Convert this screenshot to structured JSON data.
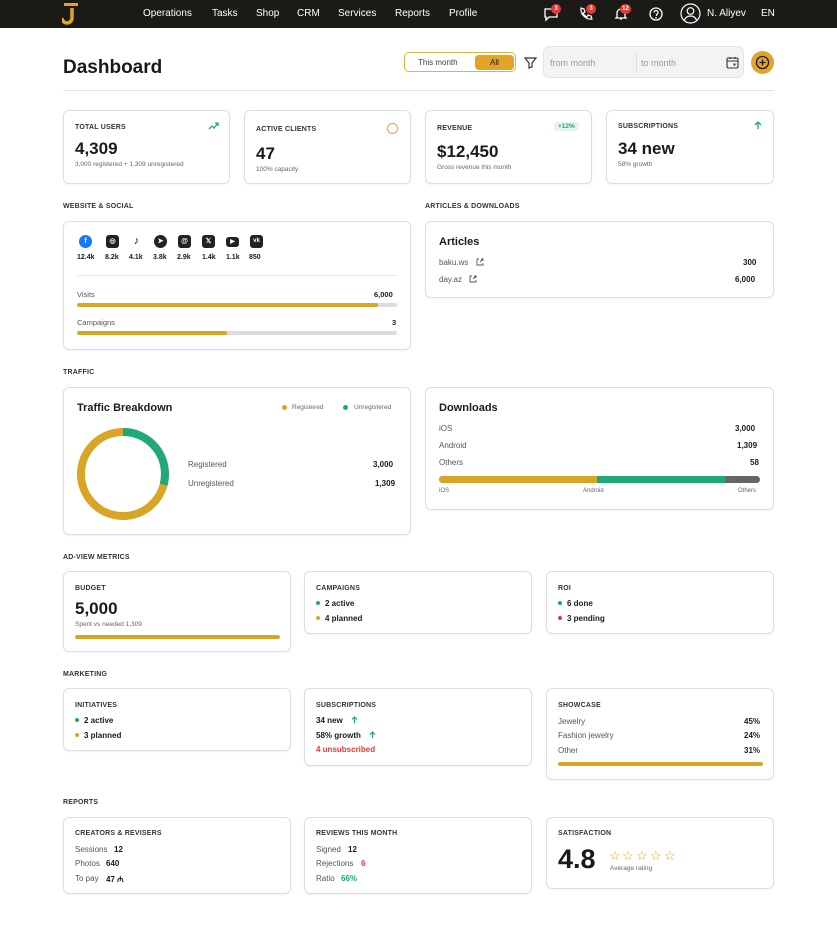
{
  "nav": {
    "items": [
      "Operations",
      "Tasks",
      "Shop",
      "CRM",
      "Services",
      "Reports",
      "Profile"
    ],
    "badges": {
      "chat": "3",
      "calls": "3",
      "notifications": "12"
    },
    "user": "N. Aliyev",
    "lang": "EN"
  },
  "header": {
    "title": "Dashboard",
    "toggle": [
      "This month",
      "All"
    ],
    "from_placeholder": "from month",
    "to_placeholder": "to month"
  },
  "stats": {
    "total_users": {
      "label": "TOTAL USERS",
      "value": "4,309",
      "sub": "3,000 registered + 1,309 unregistered"
    },
    "active_clients": {
      "label": "ACTIVE CLIENTS",
      "value": "47",
      "sub": "100% capacity"
    },
    "revenue": {
      "label": "REVENUE",
      "value": "$12,450",
      "sub": "Gross revenue this month",
      "badge": "+12%"
    },
    "subscriptions": {
      "label": "SUBSCRIPTIONS",
      "value": "34 new",
      "sub": "58% growth"
    }
  },
  "website": {
    "section": "WEBSITE & SOCIAL",
    "social": [
      {
        "icon": "facebook-icon",
        "count": "12.4k"
      },
      {
        "icon": "instagram-icon",
        "count": "8.2k"
      },
      {
        "icon": "tiktok-icon",
        "count": "4.1k"
      },
      {
        "icon": "telegram-icon",
        "count": "3.8k"
      },
      {
        "icon": "threads-icon",
        "count": "2.9k"
      },
      {
        "icon": "x-icon",
        "count": "1.4k"
      },
      {
        "icon": "youtube-icon",
        "count": "1.1k"
      },
      {
        "icon": "vk-icon",
        "count": "850"
      }
    ],
    "visits_label": "Visits",
    "visits_value": "6,000",
    "visits_fill": 0.94,
    "campaigns_label": "Campaigns",
    "campaigns_value": "3",
    "campaigns_fill": 0.47
  },
  "articles": {
    "section": "ARTICLES & DOWNLOADS",
    "title": "Articles",
    "items": [
      {
        "name": "baku.ws",
        "value": "300"
      },
      {
        "name": "day.az",
        "value": "6,000"
      }
    ]
  },
  "traffic": {
    "section": "TRAFFIC",
    "title": "Traffic Breakdown",
    "legend": [
      "Registered",
      "Unregistered"
    ],
    "rows": [
      {
        "label": "Registered",
        "value": "3,000"
      },
      {
        "label": "Unregistered",
        "value": "1,309"
      }
    ]
  },
  "downloads": {
    "title": "Downloads",
    "rows": [
      {
        "label": "iOS",
        "value": "3,000"
      },
      {
        "label": "Android",
        "value": "1,309"
      },
      {
        "label": "Others",
        "value": "58"
      }
    ],
    "axis": [
      "iOS",
      "Android",
      "Others"
    ]
  },
  "adview": {
    "section": "AD-VIEW METRICS",
    "budget_label": "BUDGET",
    "budget_value": "5,000",
    "budget_sub": "Spent vs needed 1,309",
    "budget_fill": 1.0,
    "campaigns_label": "CAMPAIGNS",
    "campaigns": [
      "2 active",
      "4 planned"
    ],
    "roi_label": "ROI",
    "roi": [
      "6 done",
      "3 pending"
    ]
  },
  "marketing": {
    "section": "MARKETING",
    "initiatives_label": "INITIATIVES",
    "initiatives": [
      "2 active",
      "3 planned"
    ],
    "subs_label": "SUBSCRIPTIONS",
    "subs": [
      "34 new",
      "58% growth",
      "4 unsubscribed"
    ],
    "showcase_label": "SHOWCASE",
    "showcase": [
      {
        "name": "Jewelry",
        "value": "45%"
      },
      {
        "name": "Fashion jewelry",
        "value": "24%"
      },
      {
        "name": "Other",
        "value": "31%"
      }
    ],
    "showcase_fill": 1.0
  },
  "reports": {
    "section": "REPORTS",
    "creators_label": "CREATORS & REVISERS",
    "creators": [
      {
        "k": "Sessions",
        "v": "12"
      },
      {
        "k": "Photos",
        "v": "640"
      },
      {
        "k": "To pay",
        "v": "47 ₼"
      }
    ],
    "reviews_label": "REVIEWS THIS MONTH",
    "reviews": [
      {
        "k": "Signed",
        "v": "12"
      },
      {
        "k": "Rejections",
        "v": "6"
      },
      {
        "k": "Ratio",
        "v": "66%"
      }
    ],
    "satisfaction_label": "SATISFACTION",
    "satisfaction_value": "4.8",
    "satisfaction_sub": "Average rating",
    "stars": 5
  },
  "colors": {
    "accent": "#d9a527",
    "green": "#1fa97a",
    "red": "#e53935",
    "dark": "#1c1a17"
  }
}
